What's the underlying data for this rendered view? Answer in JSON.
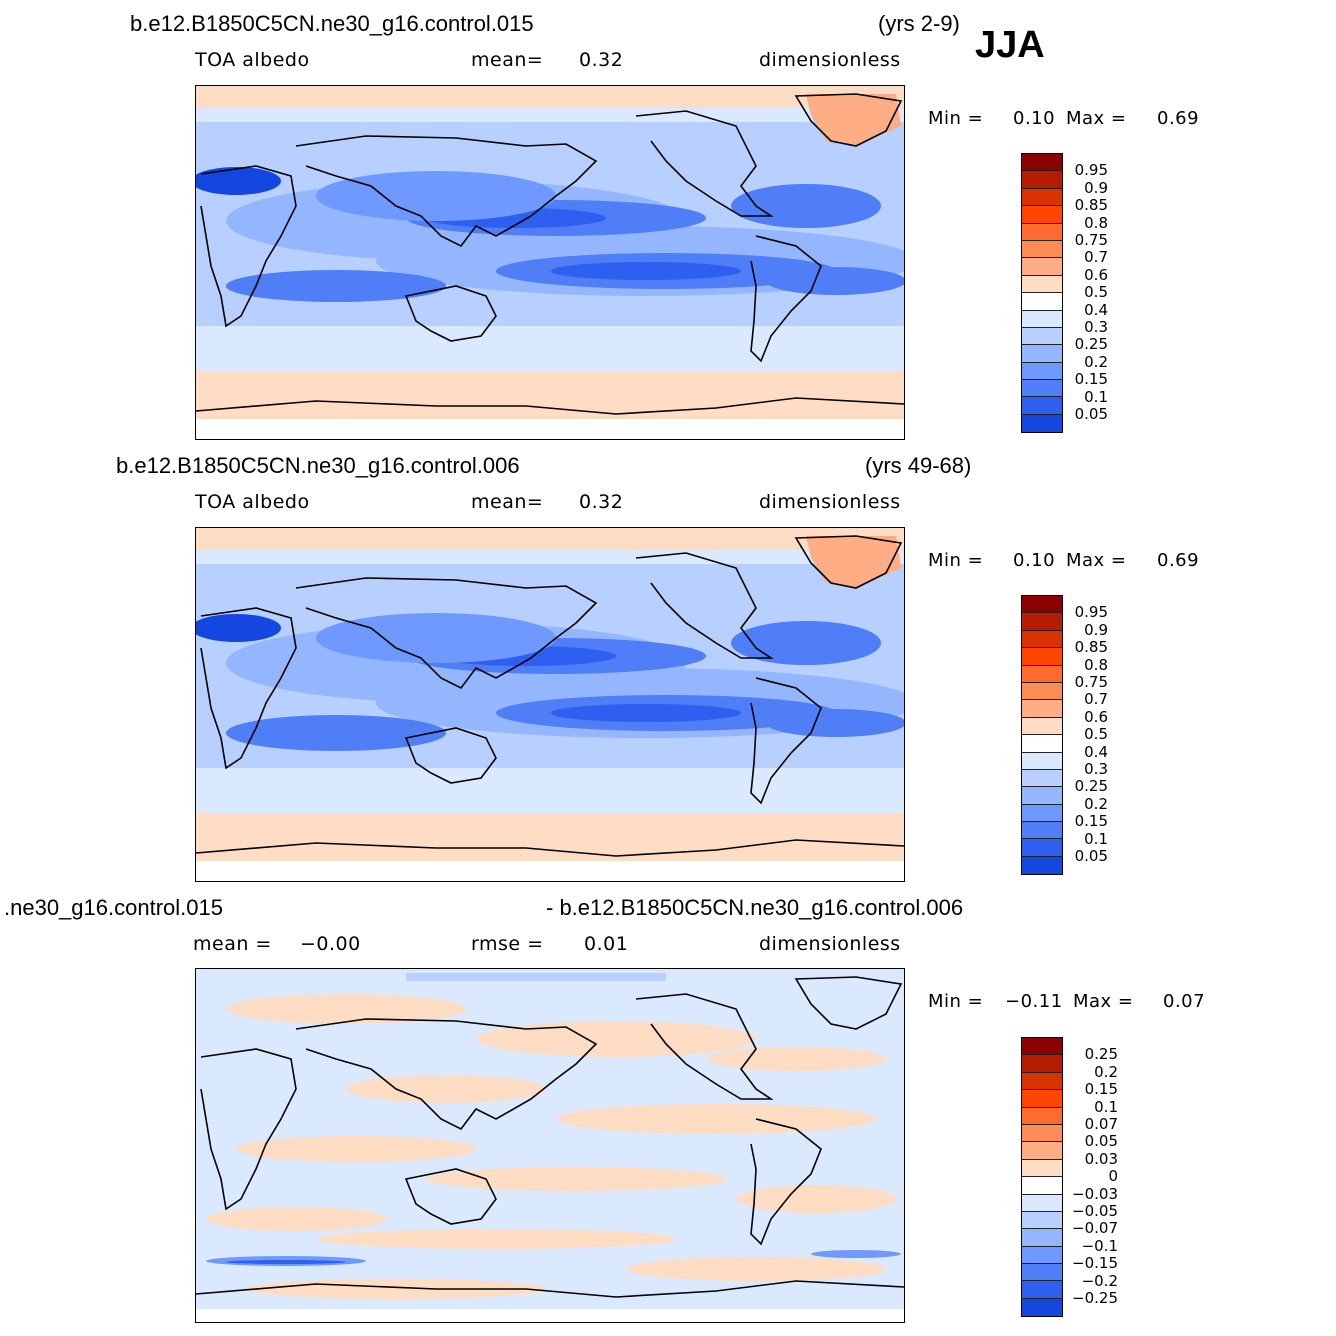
{
  "season": "JJA",
  "palette_full": [
    "#8b0000",
    "#b22200",
    "#d43200",
    "#ff4500",
    "#ff7a3c",
    "#ff9a6a",
    "#ffbf96",
    "#fde0cc",
    "#ffffff",
    "#dceaff",
    "#b6cfff",
    "#93b4ff",
    "#6e96ff",
    "#4d7cf5",
    "#2d5ef0",
    "#1244e0",
    "#0a2cc0",
    "#00189a",
    "#000b80"
  ],
  "panels": [
    {
      "case": "b.e12.B1850C5CN.ne30_g16.control.015",
      "years": "(yrs 2-9)",
      "variable": "TOA  albedo",
      "stat1_label": "mean=",
      "stat1_value": "0.32",
      "units": "dimensionless",
      "min_label": "Min  =",
      "min_value": "0.10",
      "max_label": "Max  =",
      "max_value": "0.69",
      "colorbar_labels": [
        "0.95",
        "0.9",
        "0.85",
        "0.8",
        "0.75",
        "0.7",
        "0.6",
        "0.5",
        "0.4",
        "0.3",
        "0.25",
        "0.2",
        "0.15",
        "0.1",
        "0.05"
      ],
      "colorbar_colors": [
        "#8b0000",
        "#b81c00",
        "#d93200",
        "#ff4500",
        "#ff6a2e",
        "#ff8c55",
        "#ffad85",
        "#ffdcc4",
        "#ffffff",
        "#dbe9ff",
        "#b8d0ff",
        "#94b6ff",
        "#7099ff",
        "#4f7ef7",
        "#2f5ff0",
        "#1446e0",
        "#0a2cbe",
        "#001a9b",
        "#000b80"
      ]
    },
    {
      "case": "b.e12.B1850C5CN.ne30_g16.control.006",
      "years": "(yrs 49-68)",
      "variable": "TOA  albedo",
      "stat1_label": "mean=",
      "stat1_value": "0.32",
      "units": "dimensionless",
      "min_label": "Min  =",
      "min_value": "0.10",
      "max_label": "Max  =",
      "max_value": "0.69",
      "colorbar_labels": [
        "0.95",
        "0.9",
        "0.85",
        "0.8",
        "0.75",
        "0.7",
        "0.6",
        "0.5",
        "0.4",
        "0.3",
        "0.25",
        "0.2",
        "0.15",
        "0.1",
        "0.05"
      ],
      "colorbar_colors": [
        "#8b0000",
        "#b81c00",
        "#d93200",
        "#ff4500",
        "#ff6a2e",
        "#ff8c55",
        "#ffad85",
        "#ffdcc4",
        "#ffffff",
        "#dbe9ff",
        "#b8d0ff",
        "#94b6ff",
        "#7099ff",
        "#4f7ef7",
        "#2f5ff0",
        "#1446e0",
        "#0a2cbe",
        "#001a9b",
        "#000b80"
      ]
    },
    {
      "case_left": ".ne30_g16.control.015",
      "case_right": "- b.e12.B1850C5CN.ne30_g16.control.006",
      "stat1_label": "mean  =",
      "stat1_value": "−0.00",
      "stat2_label": "rmse  =",
      "stat2_value": "0.01",
      "units": "dimensionless",
      "min_label": "Min  =",
      "min_value": "−0.11",
      "max_label": "Max  =",
      "max_value": "0.07",
      "colorbar_labels": [
        "0.25",
        "0.2",
        "0.15",
        "0.1",
        "0.07",
        "0.05",
        "0.03",
        "0",
        "−0.03",
        "−0.05",
        "−0.07",
        "−0.1",
        "−0.15",
        "−0.2",
        "−0.25"
      ],
      "colorbar_colors": [
        "#8b0000",
        "#b81c00",
        "#d93200",
        "#ff4500",
        "#ff6a2e",
        "#ff8c55",
        "#ffad85",
        "#ffdcc4",
        "#ffffff",
        "#dbe9ff",
        "#b8d0ff",
        "#94b6ff",
        "#7099ff",
        "#4f7ef7",
        "#2f5ff0",
        "#1446e0",
        "#0a2cbe",
        "#001a9b",
        "#000b80"
      ]
    }
  ]
}
